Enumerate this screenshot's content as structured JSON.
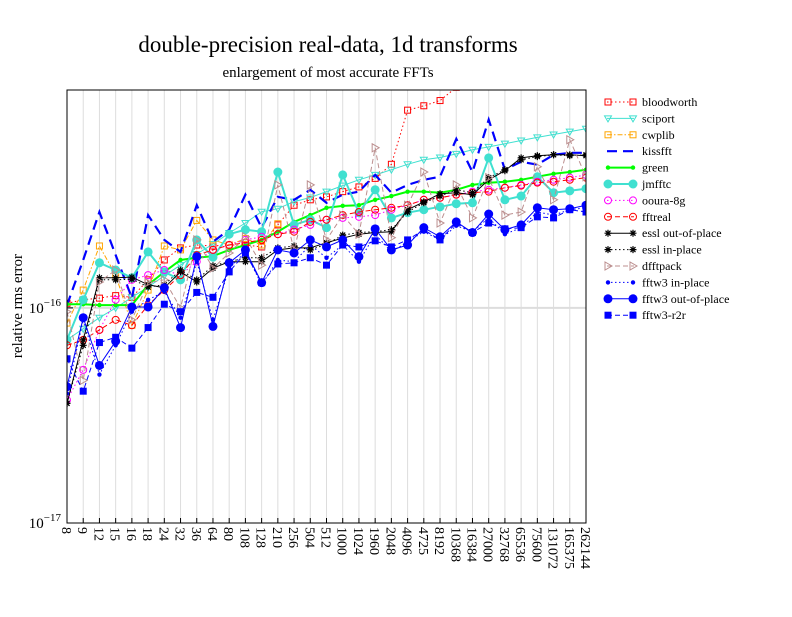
{
  "chart_data": {
    "type": "line",
    "title": "double-precision real-data, 1d transforms",
    "subtitle": "enlargement of most accurate FFTs",
    "xlabel": "",
    "ylabel": "relative rms error",
    "yscale": "log",
    "value_unit_multiplier": 1e-16,
    "ylim": [
      0.1,
      10.3
    ],
    "y_ticks": [
      {
        "value": 0.1,
        "base": "10",
        "exp": "−17"
      },
      {
        "value": 1,
        "base": "10",
        "exp": "−16"
      }
    ],
    "grid": "vertical at every size, horizontal at decades",
    "legend_position": "right",
    "categories": [
      "8",
      "9",
      "12",
      "15",
      "16",
      "18",
      "24",
      "32",
      "36",
      "64",
      "80",
      "108",
      "128",
      "210",
      "256",
      "504",
      "512",
      "1000",
      "1024",
      "1960",
      "2048",
      "4096",
      "4725",
      "8192",
      "10368",
      "16384",
      "27000",
      "32768",
      "65536",
      "75600",
      "131072",
      "165375",
      "262144"
    ],
    "series": [
      {
        "name": "bloodworth",
        "color": "#ff0000",
        "dash": "dotted",
        "marker": "open-square",
        "values": [
          1.05,
          1.09,
          1.11,
          1.14,
          1.12,
          1.35,
          1.67,
          1.9,
          1.96,
          1.94,
          1.96,
          1.96,
          1.92,
          2.43,
          3.0,
          3.18,
          3.28,
          3.47,
          3.65,
          4.0,
          4.65,
          8.3,
          8.7,
          9.2,
          10.6,
          null,
          null,
          null,
          null,
          null,
          null,
          null,
          null
        ]
      },
      {
        "name": "sciport",
        "color": "#40e0d0",
        "dash": "solid-thin",
        "marker": "open-triangle-down",
        "values": [
          0.71,
          0.8,
          0.9,
          1.0,
          1.12,
          1.25,
          1.41,
          1.58,
          1.78,
          1.98,
          2.23,
          2.48,
          2.8,
          2.89,
          3.12,
          3.26,
          3.47,
          3.7,
          3.94,
          4.15,
          4.39,
          4.65,
          4.88,
          5.0,
          5.2,
          5.43,
          5.6,
          5.8,
          6.0,
          6.2,
          6.4,
          6.6,
          6.8
        ]
      },
      {
        "name": "cwplib",
        "color": "#ffa500",
        "dash": "dashdot",
        "marker": "open-square",
        "values": [
          0.85,
          1.21,
          1.94,
          1.42,
          0.83,
          1.21,
          1.94,
          1.86,
          2.55,
          2.07,
          1.96,
          2.1,
          1.96,
          2.46,
          null,
          null,
          null,
          null,
          null,
          null,
          null,
          null,
          null,
          null,
          null,
          null,
          null,
          null,
          null,
          null,
          null,
          null,
          null
        ]
      },
      {
        "name": "kissfft",
        "color": "#0000ff",
        "dash": "dashed-thick",
        "marker": "none",
        "values": [
          1.03,
          1.67,
          2.79,
          1.76,
          1.11,
          2.7,
          2.07,
          1.82,
          3.0,
          2.03,
          2.31,
          3.36,
          2.36,
          3.28,
          3.18,
          3.54,
          3.08,
          3.36,
          3.47,
          4.15,
          3.43,
          3.73,
          3.94,
          4.07,
          6.1,
          4.28,
          7.5,
          4.39,
          4.78,
          4.63,
          5.15,
          5.26,
          5.26
        ]
      },
      {
        "name": "green",
        "color": "#00ff00",
        "dash": "solid-thick",
        "marker": "small-dot",
        "values": [
          1.04,
          1.04,
          1.03,
          1.03,
          1.03,
          1.28,
          1.47,
          1.67,
          1.71,
          1.74,
          1.86,
          1.96,
          2.07,
          2.26,
          2.51,
          2.7,
          2.92,
          2.98,
          3.0,
          3.18,
          3.31,
          3.47,
          3.47,
          3.43,
          3.54,
          3.73,
          3.82,
          3.86,
          3.94,
          4.07,
          4.2,
          4.28,
          4.39
        ]
      },
      {
        "name": "jmfftc",
        "color": "#40e0d0",
        "dash": "solid-thick",
        "marker": "big-dot",
        "values": [
          0.71,
          1.09,
          1.62,
          1.5,
          1.38,
          1.82,
          1.47,
          1.35,
          2.07,
          1.72,
          2.2,
          2.31,
          2.26,
          4.28,
          2.43,
          2.57,
          2.36,
          4.15,
          2.77,
          3.54,
          2.62,
          2.77,
          2.86,
          2.95,
          3.05,
          3.08,
          4.98,
          3.18,
          3.31,
          4.07,
          3.43,
          3.5,
          3.58
        ]
      },
      {
        "name": "ooura-8g",
        "color": "#ff00ff",
        "dash": "dotted",
        "marker": "open-circle",
        "values": [
          0.373,
          0.515,
          0.79,
          1.09,
          1.35,
          1.42,
          1.5,
          1.42,
          1.64,
          1.86,
          1.96,
          2.07,
          2.14,
          2.2,
          2.31,
          2.43,
          2.57,
          2.62,
          2.65,
          2.7,
          2.86,
          3.0,
          3.18,
          3.25,
          3.36,
          3.47,
          3.54,
          3.62,
          3.73,
          3.86,
          3.94,
          4.03,
          4.15
        ]
      },
      {
        "name": "fftreal",
        "color": "#ff0000",
        "dash": "dashed",
        "marker": "open-circle",
        "values": [
          0.67,
          0.71,
          0.79,
          0.88,
          0.83,
          1.03,
          1.21,
          1.42,
          1.76,
          1.86,
          1.96,
          2.01,
          2.07,
          2.2,
          2.26,
          2.51,
          2.57,
          2.7,
          2.79,
          2.86,
          2.92,
          3.0,
          3.18,
          3.25,
          3.36,
          3.43,
          3.47,
          3.62,
          3.7,
          3.82,
          3.86,
          3.94,
          4.03
        ]
      },
      {
        "name": "essl out-of-place",
        "color": "#000000",
        "dash": "solid",
        "marker": "star",
        "values": [
          0.36,
          0.71,
          1.38,
          1.38,
          1.39,
          1.28,
          1.24,
          1.47,
          1.32,
          1.53,
          1.64,
          1.64,
          1.64,
          1.86,
          1.9,
          1.9,
          2.01,
          2.11,
          2.2,
          2.24,
          2.26,
          2.86,
          3.11,
          3.39,
          3.43,
          3.36,
          3.94,
          4.34,
          4.98,
          5.1,
          5.15,
          5.15,
          5.1
        ]
      },
      {
        "name": "essl in-place",
        "color": "#000000",
        "dash": "dotted",
        "marker": "star",
        "values": [
          0.36,
          0.67,
          1.35,
          1.35,
          1.36,
          1.25,
          1.28,
          1.5,
          1.35,
          1.57,
          1.64,
          1.71,
          1.71,
          1.9,
          1.94,
          1.86,
          1.98,
          2.18,
          2.24,
          2.26,
          2.31,
          2.79,
          3.08,
          3.31,
          3.54,
          3.43,
          4.03,
          4.39,
          4.88,
          5.05,
          5.15,
          5.1,
          5.15
        ]
      },
      {
        "name": "dfftpack",
        "color": "#bc8f8f",
        "dash": "dashed",
        "marker": "open-triangle-right",
        "values": [
          0.96,
          0.46,
          1.32,
          1.5,
          0.88,
          1.31,
          1.35,
          1.0,
          2.07,
          1.53,
          1.8,
          2.14,
          1.58,
          3.73,
          1.86,
          3.73,
          2.07,
          2.7,
          2.2,
          5.55,
          2.12,
          3.0,
          4.28,
          2.48,
          3.73,
          2.62,
          4.03,
          2.7,
          2.79,
          4.53,
          3.18,
          6.05,
          4.07
        ]
      },
      {
        "name": "fftw3 in-place",
        "color": "#0000ff",
        "dash": "dotted",
        "marker": "small-dot",
        "values": [
          0.4,
          0.88,
          0.49,
          0.67,
          0.96,
          1.09,
          1.19,
          0.9,
          1.64,
          0.88,
          1.53,
          1.82,
          1.28,
          1.67,
          1.64,
          1.96,
          1.71,
          1.96,
          1.64,
          2.2,
          1.82,
          2.03,
          2.26,
          2.07,
          2.41,
          2.26,
          2.62,
          2.2,
          2.36,
          2.79,
          2.7,
          2.86,
          2.92
        ]
      },
      {
        "name": "fftw3 out-of-place",
        "color": "#0000ff",
        "dash": "solid",
        "marker": "big-dot",
        "values": [
          0.43,
          0.9,
          0.54,
          0.7,
          1.01,
          1.01,
          1.24,
          0.81,
          1.73,
          0.82,
          1.62,
          1.86,
          1.31,
          1.86,
          1.8,
          2.07,
          1.92,
          2.07,
          1.73,
          2.33,
          1.86,
          1.96,
          2.36,
          2.14,
          2.51,
          2.24,
          2.73,
          2.31,
          2.43,
          2.92,
          2.86,
          2.89,
          3.0
        ]
      },
      {
        "name": "fftw3-r2r",
        "color": "#0000ff",
        "dash": "dashed",
        "marker": "filled-square",
        "values": [
          0.58,
          0.41,
          0.69,
          0.73,
          0.65,
          0.81,
          1.04,
          0.96,
          1.18,
          1.12,
          1.47,
          1.8,
          1.31,
          1.6,
          1.62,
          1.71,
          1.58,
          1.96,
          1.92,
          2.05,
          1.92,
          2.07,
          2.31,
          2.07,
          2.48,
          2.24,
          2.48,
          2.33,
          2.36,
          2.65,
          2.62,
          2.86,
          2.79
        ]
      }
    ]
  }
}
